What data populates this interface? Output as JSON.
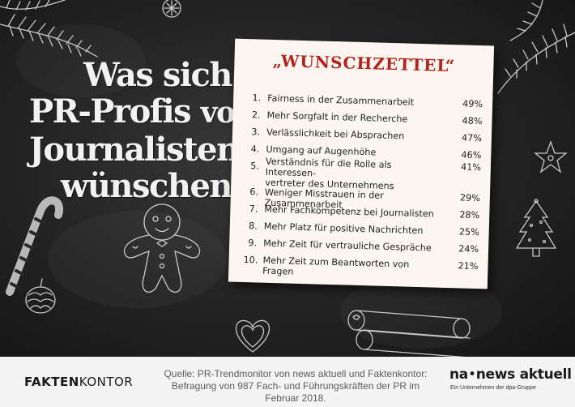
{
  "headline": {
    "line1": "Was sich",
    "line2a": "PR-Profis",
    "line2b": "von",
    "line3": "Journalisten",
    "line4": "wünschen"
  },
  "card": {
    "title": "„WUNSCHZETTEL“"
  },
  "chart_data": {
    "type": "table",
    "title": "„WUNSCHZETTEL“",
    "unit": "%",
    "rows": [
      {
        "rank": "1.",
        "label": "Fairness in der Zusammenarbeit",
        "value": 49,
        "value_text": "49%"
      },
      {
        "rank": "2.",
        "label": "Mehr Sorgfalt in der Recherche",
        "value": 48,
        "value_text": "48%"
      },
      {
        "rank": "3.",
        "label": "Verlässlichkeit bei Absprachen",
        "value": 47,
        "value_text": "47%"
      },
      {
        "rank": "4.",
        "label": "Umgang auf Augenhöhe",
        "value": 46,
        "value_text": "46%"
      },
      {
        "rank": "5.",
        "label": "Verständnis für die Rolle als Interessen-vertreter des Unternehmens",
        "label_line1": "Verständnis für die Rolle als Interessen-",
        "label_line2": "vertreter des Unternehmens",
        "value": 41,
        "value_text": "41%"
      },
      {
        "rank": "6.",
        "label": "Weniger Misstrauen in der Zusammenarbeit",
        "value": 29,
        "value_text": "29%"
      },
      {
        "rank": "7.",
        "label": "Mehr Fachkompetenz bei Journalisten",
        "value": 28,
        "value_text": "28%"
      },
      {
        "rank": "8.",
        "label": "Mehr Platz für positive Nachrichten",
        "value": 25,
        "value_text": "25%"
      },
      {
        "rank": "9.",
        "label": "Mehr Zeit für vertrauliche Gespräche",
        "value": 24,
        "value_text": "24%"
      },
      {
        "rank": "10.",
        "label": "Mehr Zeit zum Beantworten von Fragen",
        "value": 21,
        "value_text": "21%"
      }
    ]
  },
  "footer": {
    "faktenkontor_bold": "FAKTEN",
    "faktenkontor_light": "KONTOR",
    "source_line1": "Quelle: PR-Trendmonitor von news aktuell und Faktenkontor:",
    "source_line2": "Befragung von 987 Fach- und Führungskräften der PR im Februar 2018.",
    "na_logo_bold": "na",
    "na_logo_rest": "news aktuell",
    "na_sub": "Ein Unternehmen der dpa-Gruppe"
  },
  "decorations": [
    "fir-branch-icon",
    "gingerbread-man-icon",
    "candy-cane-icon",
    "pine-cone-icon",
    "star-anise-icon",
    "christmas-tree-cookie-icon",
    "heart-cookie-icon",
    "cinnamon-sticks-icon",
    "snowflake-cookie-icon"
  ],
  "colors": {
    "board": "#2b2b2b",
    "card": "#fbf7f0",
    "title_red": "#b3241f",
    "footer": "#f4f4f4"
  }
}
